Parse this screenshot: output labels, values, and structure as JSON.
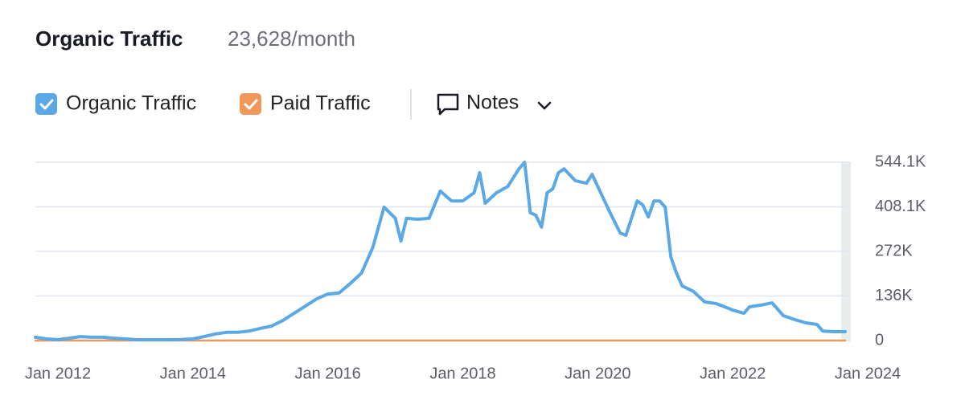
{
  "chart_data": {
    "type": "line",
    "title": "Organic Traffic",
    "subtitle": "23,628/month",
    "x": [
      "2011-09",
      "2011-11",
      "2012-01",
      "2012-03",
      "2012-05",
      "2012-07",
      "2012-09",
      "2012-11",
      "2013-01",
      "2013-03",
      "2013-05",
      "2013-07",
      "2013-09",
      "2013-11",
      "2014-01",
      "2014-03",
      "2014-05",
      "2014-07",
      "2014-09",
      "2014-11",
      "2015-01",
      "2015-03",
      "2015-05",
      "2015-07",
      "2015-09",
      "2015-11",
      "2016-01",
      "2016-03",
      "2016-05",
      "2016-07",
      "2016-09",
      "2016-11",
      "2017-01",
      "2017-02",
      "2017-03",
      "2017-05",
      "2017-07",
      "2017-09",
      "2017-11",
      "2018-01",
      "2018-03",
      "2018-04",
      "2018-05",
      "2018-07",
      "2018-09",
      "2018-11",
      "2018-12",
      "2019-01",
      "2019-02",
      "2019-03",
      "2019-04",
      "2019-05",
      "2019-06",
      "2019-07",
      "2019-09",
      "2019-11",
      "2019-12",
      "2020-01",
      "2020-03",
      "2020-05",
      "2020-06",
      "2020-07",
      "2020-08",
      "2020-09",
      "2020-10",
      "2020-11",
      "2020-12",
      "2021-01",
      "2021-02",
      "2021-03",
      "2021-04",
      "2021-06",
      "2021-08",
      "2021-10",
      "2021-12",
      "2022-01",
      "2022-03",
      "2022-04",
      "2022-06",
      "2022-08",
      "2022-10",
      "2022-12",
      "2023-02",
      "2023-04",
      "2023-05",
      "2023-07",
      "2023-09"
    ],
    "series": [
      {
        "name": "Organic Traffic",
        "color": "#5aa9e6",
        "values": [
          10000,
          5000,
          2500,
          7000,
          12000,
          10000,
          10000,
          7000,
          5000,
          2500,
          2500,
          2500,
          2500,
          3000,
          5000,
          12000,
          20000,
          25000,
          25000,
          29000,
          37000,
          44000,
          61000,
          83000,
          105000,
          127000,
          142000,
          145000,
          174000,
          206000,
          284000,
          407000,
          373000,
          304000,
          373000,
          370000,
          373000,
          456000,
          426000,
          426000,
          451000,
          512000,
          419000,
          451000,
          470000,
          524000,
          544000,
          390000,
          382000,
          346000,
          451000,
          463000,
          512000,
          524000,
          488000,
          480000,
          507000,
          470000,
          397000,
          328000,
          321000,
          373000,
          426000,
          414000,
          377000,
          426000,
          426000,
          407000,
          255000,
          206000,
          167000,
          150000,
          118000,
          113000,
          100000,
          93000,
          83000,
          103000,
          108000,
          115000,
          76000,
          64000,
          54000,
          49000,
          29000,
          27000,
          27000
        ]
      },
      {
        "name": "Paid Traffic",
        "color": "#f0975a",
        "values": [
          0,
          0,
          0,
          0,
          0,
          0,
          0,
          0,
          0,
          0,
          0,
          0,
          0,
          0,
          0,
          0,
          0,
          0,
          0,
          0,
          0,
          0,
          0,
          0,
          0,
          0,
          0,
          0,
          0,
          0,
          0,
          0,
          0,
          0,
          0,
          0,
          0,
          0,
          0,
          0,
          0,
          0,
          0,
          0,
          0,
          0,
          0,
          0,
          0,
          0,
          0,
          0,
          0,
          0,
          0,
          0,
          0,
          0,
          0,
          0,
          0,
          0,
          0,
          0,
          0,
          0,
          0,
          0,
          0,
          0,
          0,
          0,
          0,
          0,
          0,
          0,
          0,
          0,
          0,
          0,
          0,
          0,
          0,
          0,
          0,
          0,
          0
        ]
      }
    ],
    "xlim": [
      "2011-09",
      "2023-10"
    ],
    "xticks": [
      {
        "value": "2012-01",
        "label": "Jan 2012"
      },
      {
        "value": "2014-01",
        "label": "Jan 2014"
      },
      {
        "value": "2016-01",
        "label": "Jan 2016"
      },
      {
        "value": "2018-01",
        "label": "Jan 2018"
      },
      {
        "value": "2020-01",
        "label": "Jan 2020"
      },
      {
        "value": "2022-01",
        "label": "Jan 2022"
      },
      {
        "value": "2024-01",
        "label": "Jan 2024"
      }
    ],
    "ylim": [
      0,
      544100
    ],
    "yticks": [
      0,
      {
        "value": 136000,
        "label": "136K"
      },
      {
        "value": 272000,
        "label": "272K"
      },
      {
        "value": 408100,
        "label": "408.1K"
      },
      {
        "value": 544100,
        "label": "544.1K"
      }
    ],
    "grid": true
  },
  "controls": {
    "notes": "Notes"
  }
}
